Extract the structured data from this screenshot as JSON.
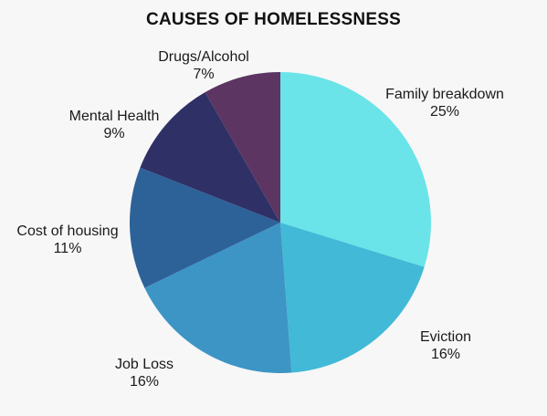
{
  "chart_data": {
    "type": "pie",
    "title": "CAUSES OF HOMELESSNESS",
    "slices": [
      {
        "label": "Family breakdown",
        "value": 25,
        "value_label": "25%",
        "color": "#6ae4e8"
      },
      {
        "label": "Eviction",
        "value": 16,
        "value_label": "16%",
        "color": "#42b9d7"
      },
      {
        "label": "Job Loss",
        "value": 16,
        "value_label": "16%",
        "color": "#3d95c5"
      },
      {
        "label": "Cost of housing",
        "value": 11,
        "value_label": "11%",
        "color": "#2d6299"
      },
      {
        "label": "Mental Health",
        "value": 9,
        "value_label": "9%",
        "color": "#2f3166"
      },
      {
        "label": "Drugs/Alcohol",
        "value": 7,
        "value_label": "7%",
        "color": "#5c3563"
      }
    ]
  }
}
